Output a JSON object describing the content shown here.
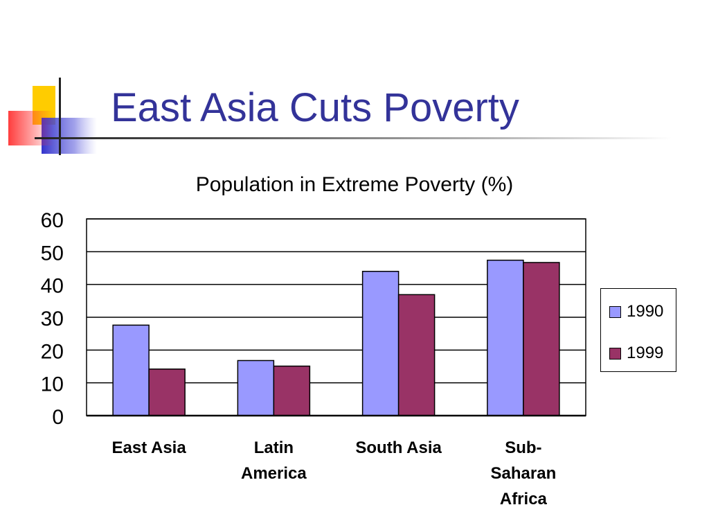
{
  "slide": {
    "title": "East Asia Cuts Poverty"
  },
  "colors": {
    "title": "#333399",
    "series_1990": "#9999ff",
    "series_1999": "#993366",
    "deco_yellow": "#ffcc00",
    "deco_red": "#ff3333",
    "deco_blue": "#3333cc"
  },
  "chart_data": {
    "type": "bar",
    "title": "Population in Extreme Poverty (%)",
    "xlabel": "",
    "ylabel": "",
    "categories": [
      "East Asia",
      "Latin America",
      "South Asia",
      "Sub-Saharan Africa"
    ],
    "category_label_lines": [
      [
        "East Asia"
      ],
      [
        "Latin",
        "America"
      ],
      [
        "South Asia"
      ],
      [
        "Sub-",
        "Saharan",
        "Africa"
      ]
    ],
    "series": [
      {
        "name": "1990",
        "color": "#9999ff",
        "values": [
          27.6,
          16.8,
          44.0,
          47.4
        ]
      },
      {
        "name": "1999",
        "color": "#993366",
        "values": [
          14.2,
          15.1,
          36.9,
          46.7
        ]
      }
    ],
    "ylim": [
      0,
      60
    ],
    "yticks": [
      0,
      10,
      20,
      30,
      40,
      50,
      60
    ],
    "grid": true,
    "legend_position": "right"
  }
}
